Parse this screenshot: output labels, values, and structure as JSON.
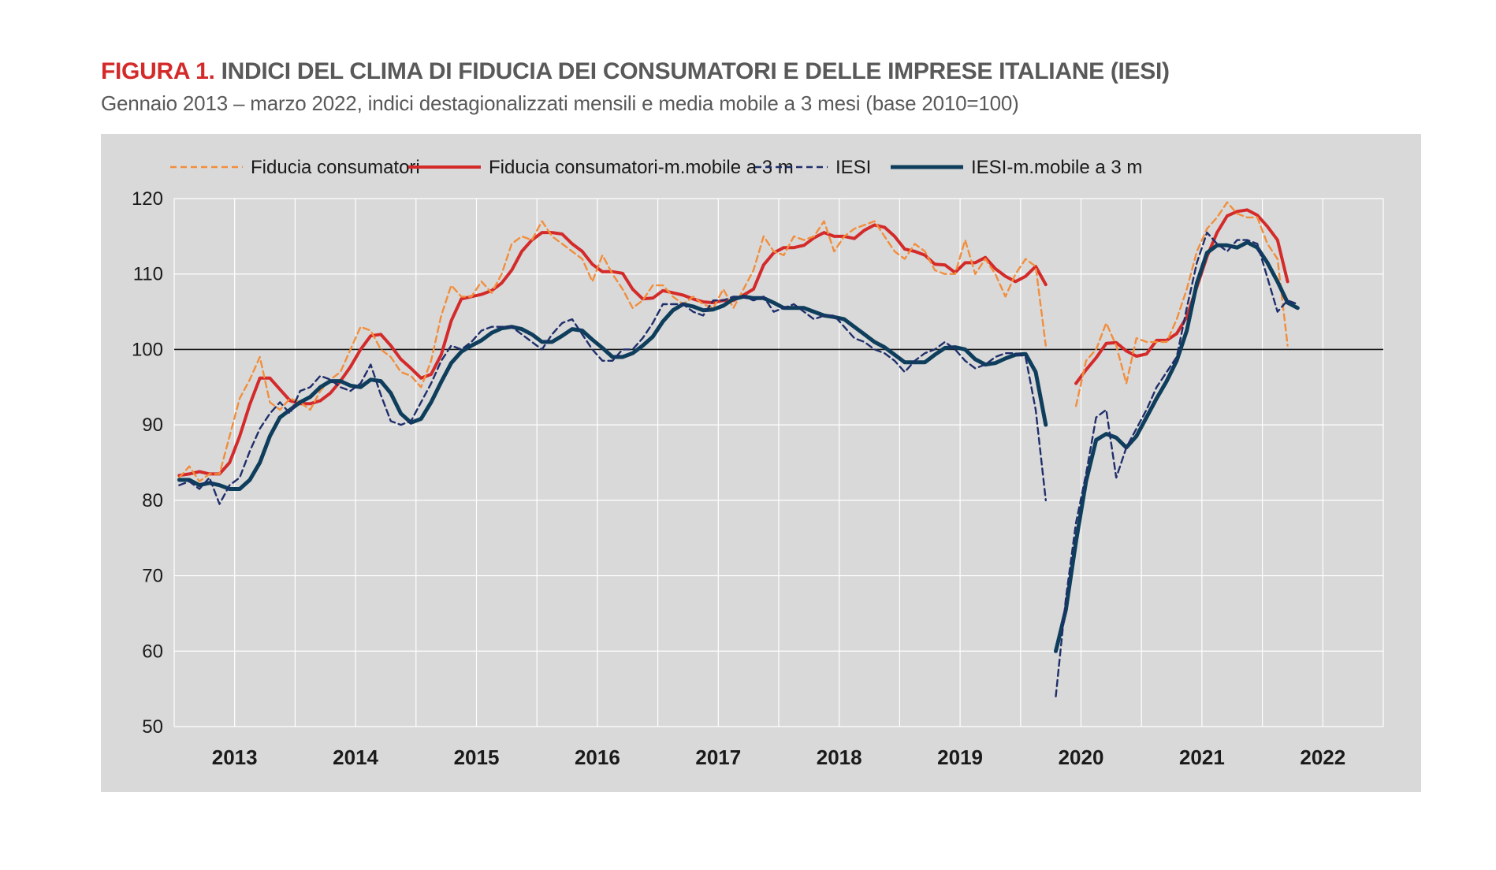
{
  "header": {
    "figure_label": "FIGURA 1.",
    "figure_title": "INDICI DEL CLIMA DI FIDUCIA DEI CONSUMATORI E DELLE IMPRESE ITALIANE (IESI)",
    "subtitle": "Gennaio 2013 – marzo 2022, indici destagionalizzati mensili e media mobile a 3 mesi (base 2010=100)"
  },
  "colors": {
    "consumers": "#f28e3c",
    "consumers_ma": "#d42a2a",
    "iesi": "#1f2f6b",
    "iesi_ma": "#0e3e5c",
    "panel": "#d9d9d9"
  },
  "chart_data": {
    "type": "line",
    "title": "INDICI DEL CLIMA DI FIDUCIA DEI CONSUMATORI E DELLE IMPRESE ITALIANE (IESI)",
    "xlabel": "",
    "ylabel": "",
    "ylim": [
      50,
      120
    ],
    "yticks": [
      50,
      60,
      70,
      80,
      90,
      100,
      110,
      120
    ],
    "reference_line": 100,
    "x_start": "2013-01",
    "x_end": "2022-12",
    "year_labels": [
      "2013",
      "2014",
      "2015",
      "2016",
      "2017",
      "2018",
      "2019",
      "2020",
      "2021",
      "2022"
    ],
    "legend_position": "top",
    "series": [
      {
        "name": "Fiducia consumatori",
        "style": "dashed",
        "start": "2013-01",
        "values": [
          83,
          84.5,
          82.5,
          83.5,
          83.5,
          88.5,
          93.5,
          96,
          99,
          93,
          92,
          93.5,
          93,
          92,
          94.5,
          96,
          97,
          100,
          103,
          102.5,
          100,
          99,
          97,
          96.5,
          95,
          98.5,
          104.5,
          108.5,
          107,
          107,
          109,
          107.5,
          110,
          114,
          115,
          114.5,
          117,
          115,
          114,
          113,
          112,
          109,
          112.5,
          110,
          108,
          105.5,
          106.5,
          108.5,
          108.5,
          107,
          106,
          107,
          106,
          105.5,
          108,
          105.5,
          108,
          110.5,
          115,
          113,
          112.5,
          115,
          114.5,
          115,
          117,
          113,
          115,
          116,
          116.5,
          117,
          115,
          113,
          112,
          114,
          113,
          110.5,
          110,
          110,
          114.5,
          110,
          112,
          110,
          107,
          110,
          112,
          111,
          100.5,
          null,
          null,
          92.5,
          98.5,
          100,
          103.5,
          100.5,
          95.5,
          101.5,
          101,
          101,
          101,
          104,
          108,
          113,
          116,
          117.5,
          119.5,
          118,
          117.5,
          117.5,
          114,
          112,
          100.5
        ]
      },
      {
        "name": "Fiducia consumatori-m.mobile a 3 m",
        "style": "solid",
        "start": "2013-01",
        "values": [
          83.3,
          83.5,
          83.8,
          83.5,
          83.5,
          85,
          88.5,
          92.7,
          96.2,
          96.2,
          94.7,
          93.2,
          92.8,
          92.8,
          93.2,
          94.2,
          95.8,
          97.7,
          100,
          101.8,
          102,
          100.5,
          98.7,
          97.5,
          96.2,
          96.7,
          99.3,
          103.8,
          106.7,
          107,
          107.3,
          107.8,
          108.8,
          110.5,
          113,
          114.5,
          115.5,
          115.5,
          115.3,
          114,
          113,
          111.3,
          110.3,
          110.3,
          110.1,
          108,
          106.7,
          106.8,
          107.8,
          107.5,
          107.2,
          106.7,
          106.3,
          106.2,
          106.5,
          106.5,
          107.2,
          108,
          111.2,
          112.8,
          113.5,
          113.5,
          113.8,
          114.8,
          115.5,
          115,
          115,
          114.7,
          115.8,
          116.5,
          116.2,
          115,
          113.3,
          113,
          112.5,
          111.3,
          111.2,
          110.2,
          111.5,
          111.5,
          112.2,
          110.7,
          109.7,
          109,
          109.7,
          111,
          108.6,
          null,
          null,
          95.5,
          97.3,
          98.9,
          100.8,
          100.9,
          99.8,
          99.1,
          99.4,
          101.2,
          101.2,
          102.1,
          104.3,
          108.3,
          112.3,
          115.5,
          117.7,
          118.3,
          118.5,
          117.8,
          116.3,
          114.5,
          109
        ]
      },
      {
        "name": "IESI",
        "style": "dashed",
        "start": "2013-01",
        "values": [
          82,
          82.5,
          81.5,
          83,
          79.5,
          82,
          83,
          86.5,
          89.5,
          91.5,
          93,
          91.5,
          94.5,
          95,
          96.5,
          96,
          95,
          94.5,
          95.5,
          98,
          94,
          90.5,
          90,
          90.5,
          93,
          95.5,
          98.5,
          100.5,
          100,
          101,
          102.5,
          103,
          103,
          103,
          102,
          101,
          100,
          102,
          103.5,
          104,
          102,
          100,
          98.5,
          98.5,
          100,
          100,
          101.5,
          103.5,
          106,
          106,
          106,
          105,
          104.5,
          106.5,
          106.5,
          107,
          107,
          106.5,
          107,
          105,
          105.5,
          106,
          105,
          104,
          104.5,
          104.5,
          103,
          101.5,
          101,
          100,
          99.5,
          98.5,
          97,
          98.5,
          99.5,
          100,
          101,
          100,
          98.5,
          97.5,
          98,
          99,
          99.5,
          99.5,
          99,
          92,
          80
        ]
      },
      {
        "name": "IESI-m.mobile a 3 m",
        "style": "solid",
        "start": "2013-01",
        "values": [
          82.7,
          82.7,
          82,
          82.3,
          82,
          81.5,
          81.5,
          82.7,
          85,
          88.5,
          91,
          92,
          93,
          93.7,
          95,
          95.8,
          95.8,
          95.2,
          95,
          96,
          95.8,
          94.2,
          91.5,
          90.3,
          90.8,
          93,
          95.7,
          98.2,
          99.7,
          100.5,
          101.2,
          102.2,
          102.8,
          103,
          102.7,
          102,
          101,
          101,
          101.8,
          102.7,
          102.5,
          101.3,
          100.2,
          99,
          99,
          99.5,
          100.5,
          101.7,
          103.7,
          105.2,
          106,
          105.7,
          105.2,
          105.3,
          105.8,
          106.7,
          107,
          106.8,
          106.8,
          106.2,
          105.5,
          105.5,
          105.5,
          105,
          104.5,
          104.3,
          104,
          103,
          102,
          101,
          100.3,
          99.3,
          98.3,
          98.3,
          98.3,
          99.3,
          100.2,
          100.3,
          100,
          98.7,
          98,
          98.2,
          98.8,
          99.3,
          99.4,
          97,
          90
        ]
      },
      {
        "name": "IESI",
        "style": "dashed",
        "start": "2020-04",
        "values": [
          54,
          67,
          77,
          83.5,
          91,
          92,
          83,
          87,
          89.5,
          92,
          95,
          97,
          99,
          105.5,
          111.5,
          115.5,
          114,
          113,
          114.5,
          114.5,
          114,
          109.5,
          105,
          106.5,
          106
        ]
      },
      {
        "name": "IESI-m.mobile a 3 m",
        "style": "solid",
        "start": "2020-04",
        "values": [
          60,
          65.5,
          74.5,
          82.5,
          88,
          88.8,
          88.3,
          87,
          88.5,
          91,
          93.5,
          95.8,
          98.5,
          102.5,
          108.8,
          112.8,
          113.8,
          113.8,
          113.5,
          114.2,
          113.5,
          111.5,
          109,
          106.2,
          105.5
        ]
      }
    ]
  }
}
